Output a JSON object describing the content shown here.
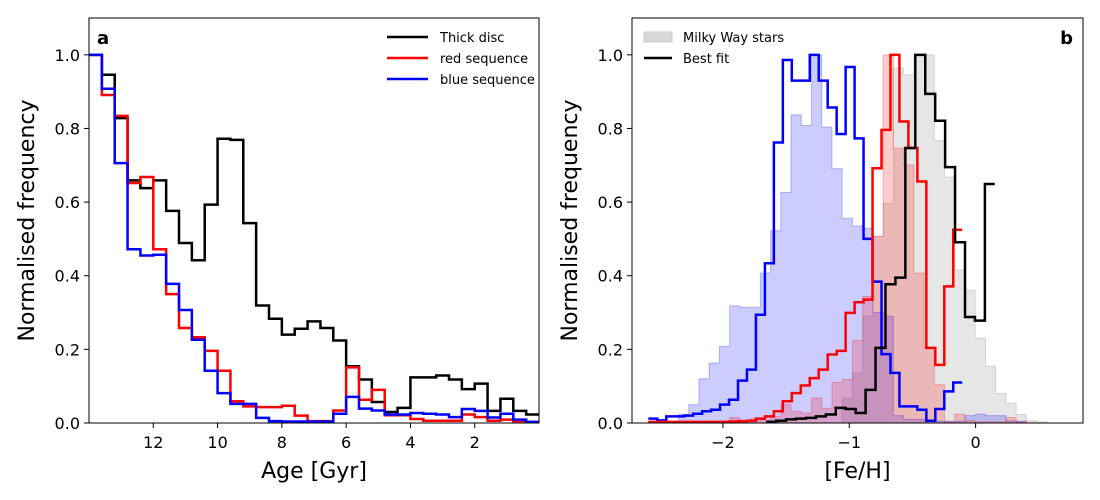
{
  "chart_data": [
    {
      "type": "histogram-step",
      "panel_label": "a",
      "xlabel": "Age [Gyr]",
      "ylabel": "Normalised frequency",
      "xlim": [
        14,
        0
      ],
      "ylim": [
        0,
        1.1
      ],
      "xticks": [
        12,
        10,
        8,
        6,
        4,
        2
      ],
      "yticks": [
        0.0,
        0.2,
        0.4,
        0.6,
        0.8,
        1.0
      ],
      "ytick_labels": [
        "0.0",
        "0.2",
        "0.4",
        "0.6",
        "0.8",
        "1.0"
      ],
      "legend_position": "top-right",
      "bins": {
        "first_edge": 14,
        "width": -0.4
      },
      "series": [
        {
          "name": "Thick disc",
          "color": "#000000",
          "values": [
            1.0,
            0.946,
            0.828,
            0.659,
            0.638,
            0.659,
            0.576,
            0.489,
            0.442,
            0.593,
            0.772,
            0.769,
            0.543,
            0.319,
            0.283,
            0.24,
            0.256,
            0.276,
            0.258,
            0.224,
            0.154,
            0.118,
            0.057,
            0.03,
            0.041,
            0.124,
            0.124,
            0.129,
            0.118,
            0.092,
            0.107,
            0.033,
            0.066,
            0.033,
            0.023
          ]
        },
        {
          "name": "red sequence",
          "color": "#ff0000",
          "values": [
            1.0,
            0.891,
            0.834,
            0.652,
            0.668,
            0.472,
            0.35,
            0.258,
            0.233,
            0.196,
            0.142,
            0.059,
            0.045,
            0.043,
            0.043,
            0.047,
            0.02,
            0.005,
            0.005,
            0.034,
            0.151,
            0.063,
            0.09,
            0.021,
            0.021,
            0.011,
            0.006,
            0.006,
            0.006,
            0.023,
            0.016,
            0.006,
            0.009,
            0.005,
            0.003
          ]
        },
        {
          "name": "blue sequence",
          "color": "#0000ff",
          "values": [
            1.0,
            0.908,
            0.706,
            0.472,
            0.455,
            0.457,
            0.378,
            0.307,
            0.226,
            0.142,
            0.081,
            0.052,
            0.052,
            0.014,
            0.005,
            0.004,
            0.004,
            0.004,
            0.004,
            0.025,
            0.071,
            0.039,
            0.034,
            0.023,
            0.023,
            0.027,
            0.025,
            0.023,
            0.016,
            0.038,
            0.033,
            0.015,
            0.025,
            0.009,
            0.003
          ]
        }
      ]
    },
    {
      "type": "histogram-step",
      "panel_label": "b",
      "xlabel": "[Fe/H]",
      "ylabel": "Normalised frequency",
      "xlim": [
        -2.72,
        0.85
      ],
      "ylim": [
        0,
        1.1
      ],
      "xticks": [
        -2,
        -1,
        0
      ],
      "xtick_labels": [
        "−2",
        "−1",
        "0"
      ],
      "yticks": [
        0.0,
        0.2,
        0.4,
        0.6,
        0.8,
        1.0
      ],
      "ytick_labels": [
        "0.0",
        "0.2",
        "0.4",
        "0.6",
        "0.8",
        "1.0"
      ],
      "legend_position": "top-left",
      "legend": [
        {
          "label": "Milky Way stars",
          "kind": "patch",
          "color": "#d9d9d9"
        },
        {
          "label": "Best fit",
          "kind": "line",
          "color": "#000000"
        }
      ],
      "filled_series": [
        {
          "color": "#808080",
          "bins": {
            "first_edge": -2.352,
            "width": 0.081
          },
          "values": [
            0,
            0,
            0,
            0,
            0,
            0,
            0,
            0,
            0,
            0,
            0,
            0,
            0,
            0,
            0,
            0,
            0.068,
            0.136,
            0.29,
            0.507,
            0.597,
            0.964,
            0.946,
            1.0,
            1.0,
            0.767,
            0.668,
            0.416,
            0.361,
            0.231,
            0.154,
            0.08,
            0.054,
            0.023,
            0.006,
            0.003,
            0
          ]
        },
        {
          "color": "#0000ff",
          "bins": {
            "first_edge": -2.352,
            "width": 0.081
          },
          "values": [
            0.024,
            0.05,
            0.12,
            0.163,
            0.208,
            0.318,
            0.314,
            0.314,
            0.407,
            0.522,
            0.626,
            0.837,
            0.808,
            1.0,
            0.804,
            0.691,
            0.556,
            0.535,
            0.529,
            0.3,
            0.29,
            0.02,
            0.01,
            0.01,
            0.005,
            0.005,
            0.005,
            0.005,
            0.02,
            0.024,
            0.02,
            0.02,
            0.006,
            0.005,
            0,
            0,
            0
          ]
        },
        {
          "color": "#ff0000",
          "bins": {
            "first_edge": -2.352,
            "width": 0.081
          },
          "values": [
            0,
            0,
            0,
            0,
            0,
            0.015,
            0.006,
            0.012,
            0.008,
            0.018,
            0.05,
            0.032,
            0.027,
            0.068,
            0.04,
            0.11,
            0.118,
            0.224,
            0.344,
            0.507,
            1.0,
            0.747,
            0.701,
            0.407,
            0.204,
            0.104,
            0.003,
            0.024,
            0.006,
            0.003,
            0.003,
            0.003,
            0.015,
            0.003,
            0,
            0,
            0
          ]
        }
      ],
      "series": [
        {
          "color": "#0000ff",
          "bins": {
            "first_edge": -2.591,
            "width": 0.071
          },
          "values": [
            0.012,
            0.007,
            0.018,
            0.018,
            0.02,
            0.025,
            0.032,
            0.036,
            0.05,
            0.063,
            0.115,
            0.145,
            0.294,
            0.434,
            0.762,
            0.986,
            0.93,
            0.93,
            1.0,
            0.93,
            0.857,
            0.785,
            0.967,
            0.773,
            0.5,
            0.384,
            0.187,
            0.136,
            0.045,
            0.045,
            0.036,
            0.006,
            0.038,
            0.086,
            0.11
          ]
        },
        {
          "color": "#ff0000",
          "bins": {
            "first_edge": -2.591,
            "width": 0.071
          },
          "values": [
            0.003,
            0.003,
            0.003,
            0.003,
            0.003,
            0.003,
            0.003,
            0.003,
            0.003,
            0.004,
            0.005,
            0.006,
            0.012,
            0.018,
            0.032,
            0.059,
            0.081,
            0.102,
            0.122,
            0.145,
            0.186,
            0.196,
            0.299,
            0.328,
            0.335,
            0.692,
            0.796,
            1.0,
            0.819,
            0.747,
            0.656,
            0.204,
            0.158,
            0.371,
            0.525
          ]
        },
        {
          "name": "Best fit",
          "color": "#000000",
          "bins": {
            "first_edge": -1.658,
            "width": 0.0787
          },
          "values": [
            0.003,
            0.006,
            0.01,
            0.012,
            0.014,
            0.018,
            0.023,
            0.041,
            0.038,
            0.027,
            0.09,
            0.204,
            0.377,
            0.395,
            0.747,
            1.0,
            0.894,
            0.821,
            0.695,
            0.491,
            0.288,
            0.278,
            0.649
          ]
        }
      ]
    }
  ]
}
